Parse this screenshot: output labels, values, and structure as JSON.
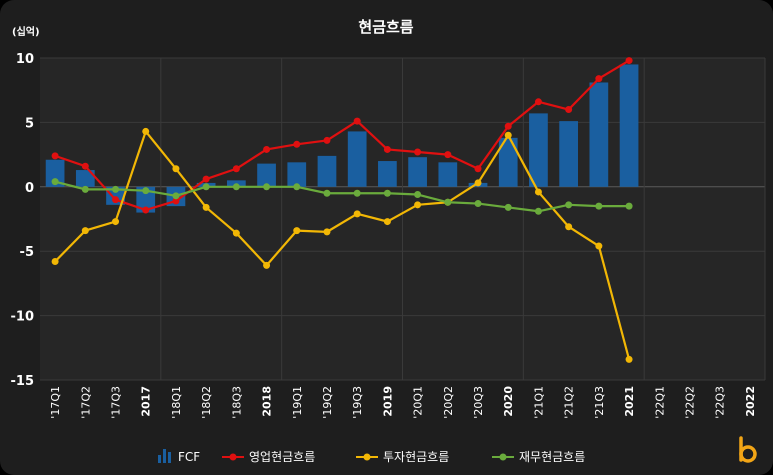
{
  "chart_data": {
    "type": "bar",
    "title": "현금흐름",
    "unit_label": "(십억)",
    "ylim": [
      -15,
      10
    ],
    "yticks": [
      10,
      5,
      0,
      -5,
      -10,
      -15
    ],
    "categories": [
      "'17Q1",
      "'17Q2",
      "'17Q3",
      "2017",
      "'18Q1",
      "'18Q2",
      "'18Q3",
      "2018",
      "'19Q1",
      "'19Q2",
      "'19Q3",
      "2019",
      "'20Q1",
      "'20Q2",
      "'20Q3",
      "2020",
      "'21Q1",
      "'21Q2",
      "'21Q3",
      "2021",
      "'22Q1",
      "'22Q2",
      "'22Q3",
      "2022"
    ],
    "bold_categories": [
      "2017",
      "2018",
      "2019",
      "2020",
      "2021",
      "2022"
    ],
    "grid": true,
    "legend_position": "bottom",
    "series": [
      {
        "name": "FCF",
        "type": "bar",
        "color": "#1a5fa0",
        "values": [
          2.1,
          1.3,
          -1.4,
          -2.0,
          -1.5,
          0.3,
          0.5,
          1.8,
          1.9,
          2.4,
          4.3,
          2.0,
          2.3,
          1.9,
          0.3,
          3.8,
          5.7,
          5.1,
          8.1,
          9.5,
          null,
          null,
          null,
          null
        ]
      },
      {
        "name": "영업현금흐름",
        "type": "line",
        "color": "#e01010",
        "values": [
          2.4,
          1.6,
          -1.0,
          -1.8,
          -1.1,
          0.6,
          1.4,
          2.9,
          3.3,
          3.6,
          5.1,
          2.9,
          2.7,
          2.5,
          1.4,
          4.7,
          6.6,
          6.0,
          8.4,
          9.8,
          null,
          null,
          null,
          null
        ]
      },
      {
        "name": "투자현금흐름",
        "type": "line",
        "color": "#f2b705",
        "values": [
          -5.8,
          -3.4,
          -2.7,
          4.3,
          1.4,
          -1.6,
          -3.6,
          -6.1,
          -3.4,
          -3.5,
          -2.1,
          -2.7,
          -1.4,
          -1.2,
          0.3,
          4.0,
          -0.4,
          -3.1,
          -4.6,
          -13.4,
          null,
          null,
          null,
          null
        ]
      },
      {
        "name": "재무현금흐름",
        "type": "line",
        "color": "#6aab3c",
        "values": [
          0.4,
          -0.2,
          -0.2,
          -0.3,
          -0.7,
          0.0,
          0.0,
          0.0,
          0.0,
          -0.5,
          -0.5,
          -0.5,
          -0.6,
          -1.2,
          -1.3,
          -1.6,
          -1.9,
          -1.4,
          -1.5,
          -1.5,
          null,
          null,
          null,
          null
        ]
      }
    ]
  }
}
